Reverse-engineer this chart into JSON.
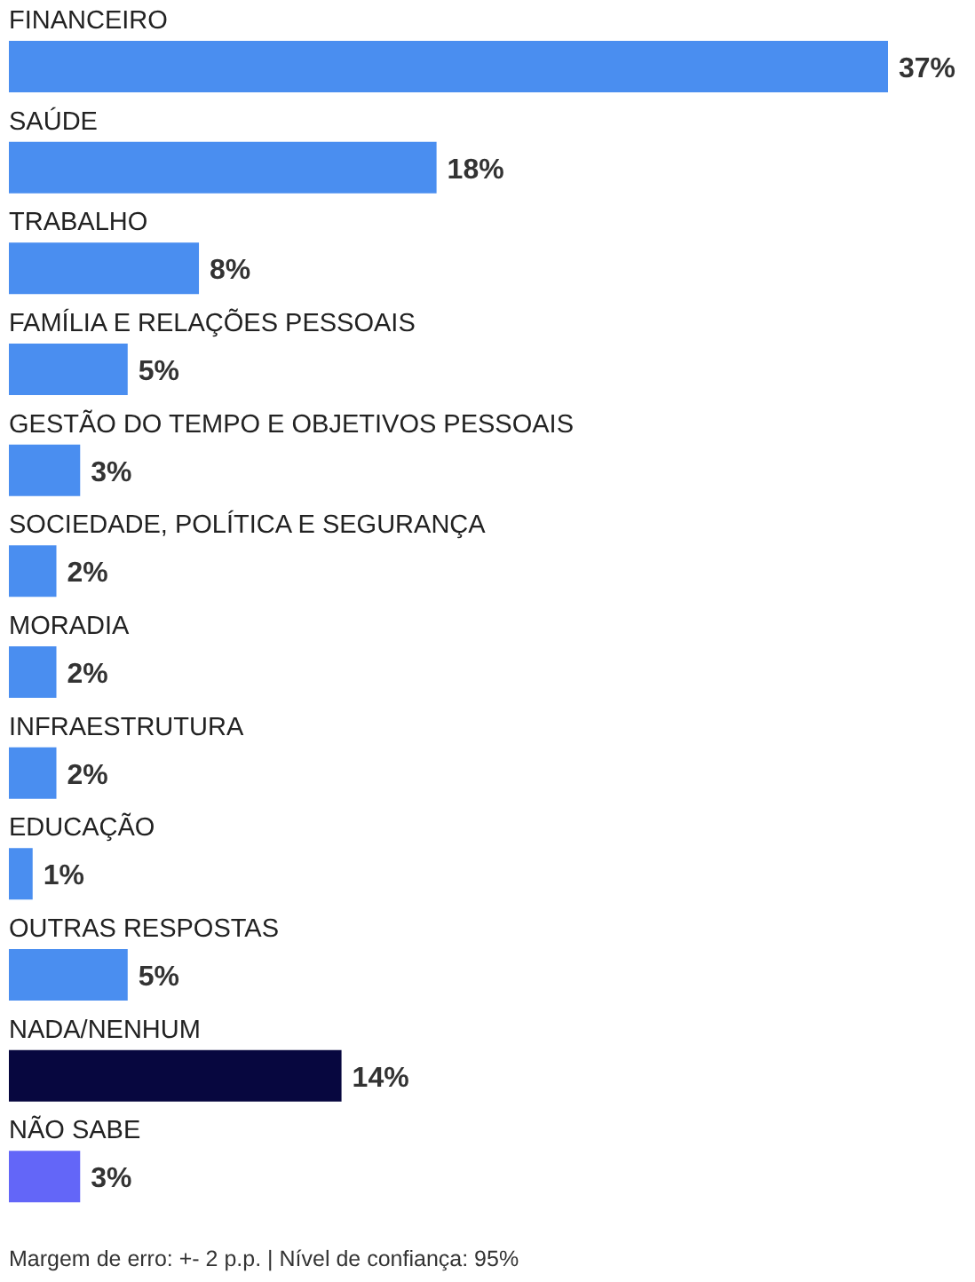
{
  "chart_data": {
    "type": "bar",
    "orientation": "horizontal",
    "categories": [
      "FINANCEIRO",
      "SAÚDE",
      "TRABALHO",
      "FAMÍLIA E RELAÇÕES PESSOAIS",
      "GESTÃO DO TEMPO E OBJETIVOS PESSOAIS",
      "SOCIEDADE, POLÍTICA E SEGURANÇA",
      "MORADIA",
      "INFRAESTRUTURA",
      "EDUCAÇÃO",
      "OUTRAS RESPOSTAS",
      "NADA/NENHUM",
      "NÃO SABE"
    ],
    "values": [
      37,
      18,
      8,
      5,
      3,
      2,
      2,
      2,
      1,
      5,
      14,
      3
    ],
    "value_labels": [
      "37%",
      "18%",
      "8%",
      "5%",
      "3%",
      "2%",
      "2%",
      "2%",
      "1%",
      "5%",
      "14%",
      "3%"
    ],
    "colors": [
      "#4a8ef0",
      "#4a8ef0",
      "#4a8ef0",
      "#4a8ef0",
      "#4a8ef0",
      "#4a8ef0",
      "#4a8ef0",
      "#4a8ef0",
      "#4a8ef0",
      "#4a8ef0",
      "#07073f",
      "#6366f8"
    ],
    "annotations": [
      "Margem de erro: +- 2 p.p. | Nível de confiança: 95%"
    ]
  }
}
